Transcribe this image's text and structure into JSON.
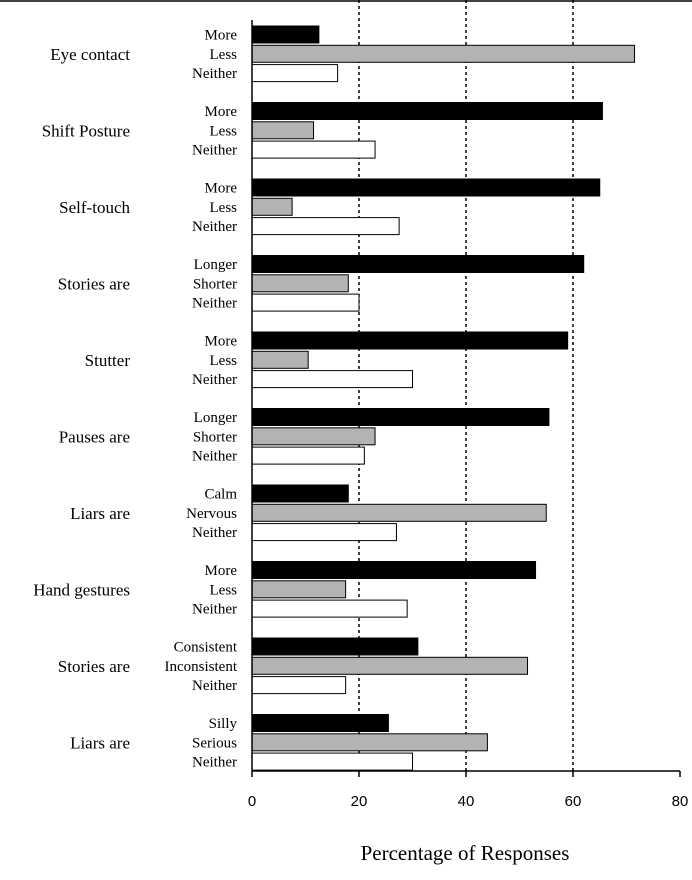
{
  "chart_data": {
    "type": "bar",
    "orientation": "horizontal",
    "xlabel": "Percentage of Responses",
    "xlim": [
      0,
      80
    ],
    "xticks": [
      0,
      20,
      40,
      60,
      80
    ],
    "grid": "vertical dotted lines at 20, 40, 60",
    "bar_colors": [
      "#000000",
      "#b3b3b3",
      "#ffffff"
    ],
    "groups": [
      {
        "label": "Eye contact",
        "categories": [
          "More",
          "Less",
          "Neither"
        ],
        "values": [
          12.5,
          71.5,
          16
        ]
      },
      {
        "label": "Shift Posture",
        "categories": [
          "More",
          "Less",
          "Neither"
        ],
        "values": [
          65.5,
          11.5,
          23
        ]
      },
      {
        "label": "Self-touch",
        "categories": [
          "More",
          "Less",
          "Neither"
        ],
        "values": [
          65,
          7.5,
          27.5
        ]
      },
      {
        "label": "Stories are",
        "categories": [
          "Longer",
          "Shorter",
          "Neither"
        ],
        "values": [
          62,
          18,
          20
        ]
      },
      {
        "label": "Stutter",
        "categories": [
          "More",
          "Less",
          "Neither"
        ],
        "values": [
          59,
          10.5,
          30
        ]
      },
      {
        "label": "Pauses are",
        "categories": [
          "Longer",
          "Shorter",
          "Neither"
        ],
        "values": [
          55.5,
          23,
          21
        ]
      },
      {
        "label": "Liars are",
        "categories": [
          "Calm",
          "Nervous",
          "Neither"
        ],
        "values": [
          18,
          55,
          27
        ]
      },
      {
        "label": "Hand gestures",
        "categories": [
          "More",
          "Less",
          "Neither"
        ],
        "values": [
          53,
          17.5,
          29
        ]
      },
      {
        "label": "Stories are",
        "categories": [
          "Consistent",
          "Inconsistent",
          "Neither"
        ],
        "values": [
          31,
          51.5,
          17.5
        ]
      },
      {
        "label": "Liars are",
        "categories": [
          "Silly",
          "Serious",
          "Neither"
        ],
        "values": [
          25.5,
          44,
          30
        ]
      }
    ]
  }
}
